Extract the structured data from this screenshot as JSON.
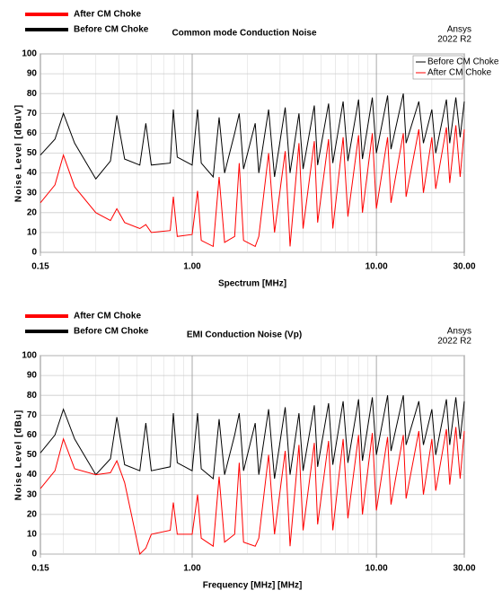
{
  "chart_data": [
    {
      "type": "line",
      "title": "Common mode Conduction Noise",
      "brand": "Ansys",
      "version": "2022 R2",
      "xlabel": "Spectrum [MHz]",
      "ylabel": "Noise Level [dBuV]",
      "xscale": "log",
      "xlim": [
        0.15,
        30
      ],
      "xticks": [
        0.15,
        {
          "value": 1,
          "label": "1.00"
        },
        {
          "value": 10,
          "label": "10.00"
        },
        {
          "value": 30,
          "label": "30.00"
        }
      ],
      "ylim": [
        0,
        100
      ],
      "yticks": [
        0,
        10,
        20,
        30,
        40,
        50,
        60,
        70,
        80,
        90,
        100
      ],
      "grid": true,
      "legend": "upper left",
      "inner_legend": "upper right",
      "x": [
        0.15,
        0.18,
        0.2,
        0.23,
        0.3,
        0.36,
        0.39,
        0.43,
        0.52,
        0.56,
        0.6,
        0.76,
        0.79,
        0.83,
        1.0,
        1.07,
        1.12,
        1.3,
        1.4,
        1.5,
        1.7,
        1.8,
        1.9,
        2.2,
        2.3,
        2.6,
        2.8,
        3.2,
        3.4,
        3.8,
        4.0,
        4.6,
        4.8,
        5.5,
        5.8,
        6.6,
        7.0,
        8.0,
        8.4,
        9.5,
        10.0,
        11.5,
        12.0,
        14.0,
        14.5,
        17.0,
        18.0,
        20.0,
        21.0,
        24.0,
        25.0,
        27.0,
        28.5,
        30.0
      ],
      "series": [
        {
          "name": "After CM Choke",
          "color": "#ff0000",
          "values": [
            25,
            34,
            49,
            33,
            20,
            16,
            22,
            15,
            12,
            14,
            10,
            11,
            28,
            8,
            9,
            31,
            6,
            3,
            38,
            5,
            8,
            45,
            6,
            3,
            8,
            50,
            10,
            51,
            3,
            55,
            12,
            56,
            15,
            57,
            12,
            58,
            18,
            59,
            20,
            60,
            22,
            58,
            25,
            60,
            28,
            62,
            30,
            58,
            32,
            63,
            35,
            64,
            38,
            62
          ]
        },
        {
          "name": "Before CM Choke",
          "color": "#000000",
          "values": [
            49,
            57,
            70,
            55,
            37,
            46,
            69,
            47,
            44,
            65,
            44,
            45,
            72,
            48,
            44,
            72,
            45,
            38,
            68,
            40,
            60,
            70,
            42,
            65,
            40,
            72,
            38,
            73,
            40,
            70,
            42,
            74,
            44,
            75,
            45,
            76,
            46,
            77,
            47,
            78,
            50,
            79,
            52,
            80,
            55,
            76,
            55,
            72,
            50,
            77,
            55,
            78,
            58,
            76
          ]
        }
      ]
    },
    {
      "type": "line",
      "title": "EMI Conduction Noise (Vp)",
      "brand": "Ansys",
      "version": "2022 R2",
      "xlabel": "Frequency [MHz] [MHz]",
      "ylabel": "Noise Level [dBu]",
      "xscale": "log",
      "xlim": [
        0.15,
        30
      ],
      "xticks": [
        0.15,
        {
          "value": 1,
          "label": "1.00"
        },
        {
          "value": 10,
          "label": "10.00"
        },
        {
          "value": 30,
          "label": "30.00"
        }
      ],
      "ylim": [
        0,
        100
      ],
      "yticks": [
        0,
        10,
        20,
        30,
        40,
        50,
        60,
        70,
        80,
        90,
        100
      ],
      "grid": true,
      "legend": "upper left",
      "x": [
        0.15,
        0.18,
        0.2,
        0.23,
        0.3,
        0.36,
        0.39,
        0.43,
        0.52,
        0.56,
        0.6,
        0.76,
        0.79,
        0.83,
        1.0,
        1.07,
        1.12,
        1.3,
        1.4,
        1.5,
        1.7,
        1.8,
        1.9,
        2.2,
        2.3,
        2.6,
        2.8,
        3.2,
        3.4,
        3.8,
        4.0,
        4.6,
        4.8,
        5.5,
        5.8,
        6.6,
        7.0,
        8.0,
        8.4,
        9.5,
        10.0,
        11.5,
        12.0,
        14.0,
        14.5,
        17.0,
        18.0,
        20.0,
        21.0,
        24.0,
        25.0,
        27.0,
        28.5,
        30.0
      ],
      "series": [
        {
          "name": "After CM Choke",
          "color": "#ff0000",
          "values": [
            33,
            42,
            58,
            43,
            40,
            41,
            47,
            36,
            0,
            3,
            10,
            12,
            26,
            10,
            10,
            30,
            8,
            4,
            39,
            6,
            10,
            46,
            6,
            4,
            8,
            50,
            10,
            52,
            4,
            55,
            12,
            56,
            15,
            57,
            12,
            58,
            18,
            60,
            20,
            61,
            22,
            59,
            25,
            60,
            28,
            62,
            30,
            58,
            32,
            63,
            35,
            64,
            38,
            62
          ]
        },
        {
          "name": "Before CM Choke",
          "color": "#000000",
          "values": [
            51,
            60,
            73,
            58,
            40,
            48,
            69,
            45,
            42,
            66,
            42,
            44,
            71,
            46,
            42,
            71,
            43,
            38,
            68,
            40,
            60,
            71,
            42,
            66,
            40,
            73,
            38,
            74,
            40,
            71,
            42,
            75,
            44,
            76,
            45,
            77,
            46,
            78,
            47,
            79,
            50,
            80,
            52,
            80,
            55,
            77,
            55,
            73,
            50,
            78,
            55,
            79,
            58,
            77
          ]
        }
      ]
    }
  ]
}
